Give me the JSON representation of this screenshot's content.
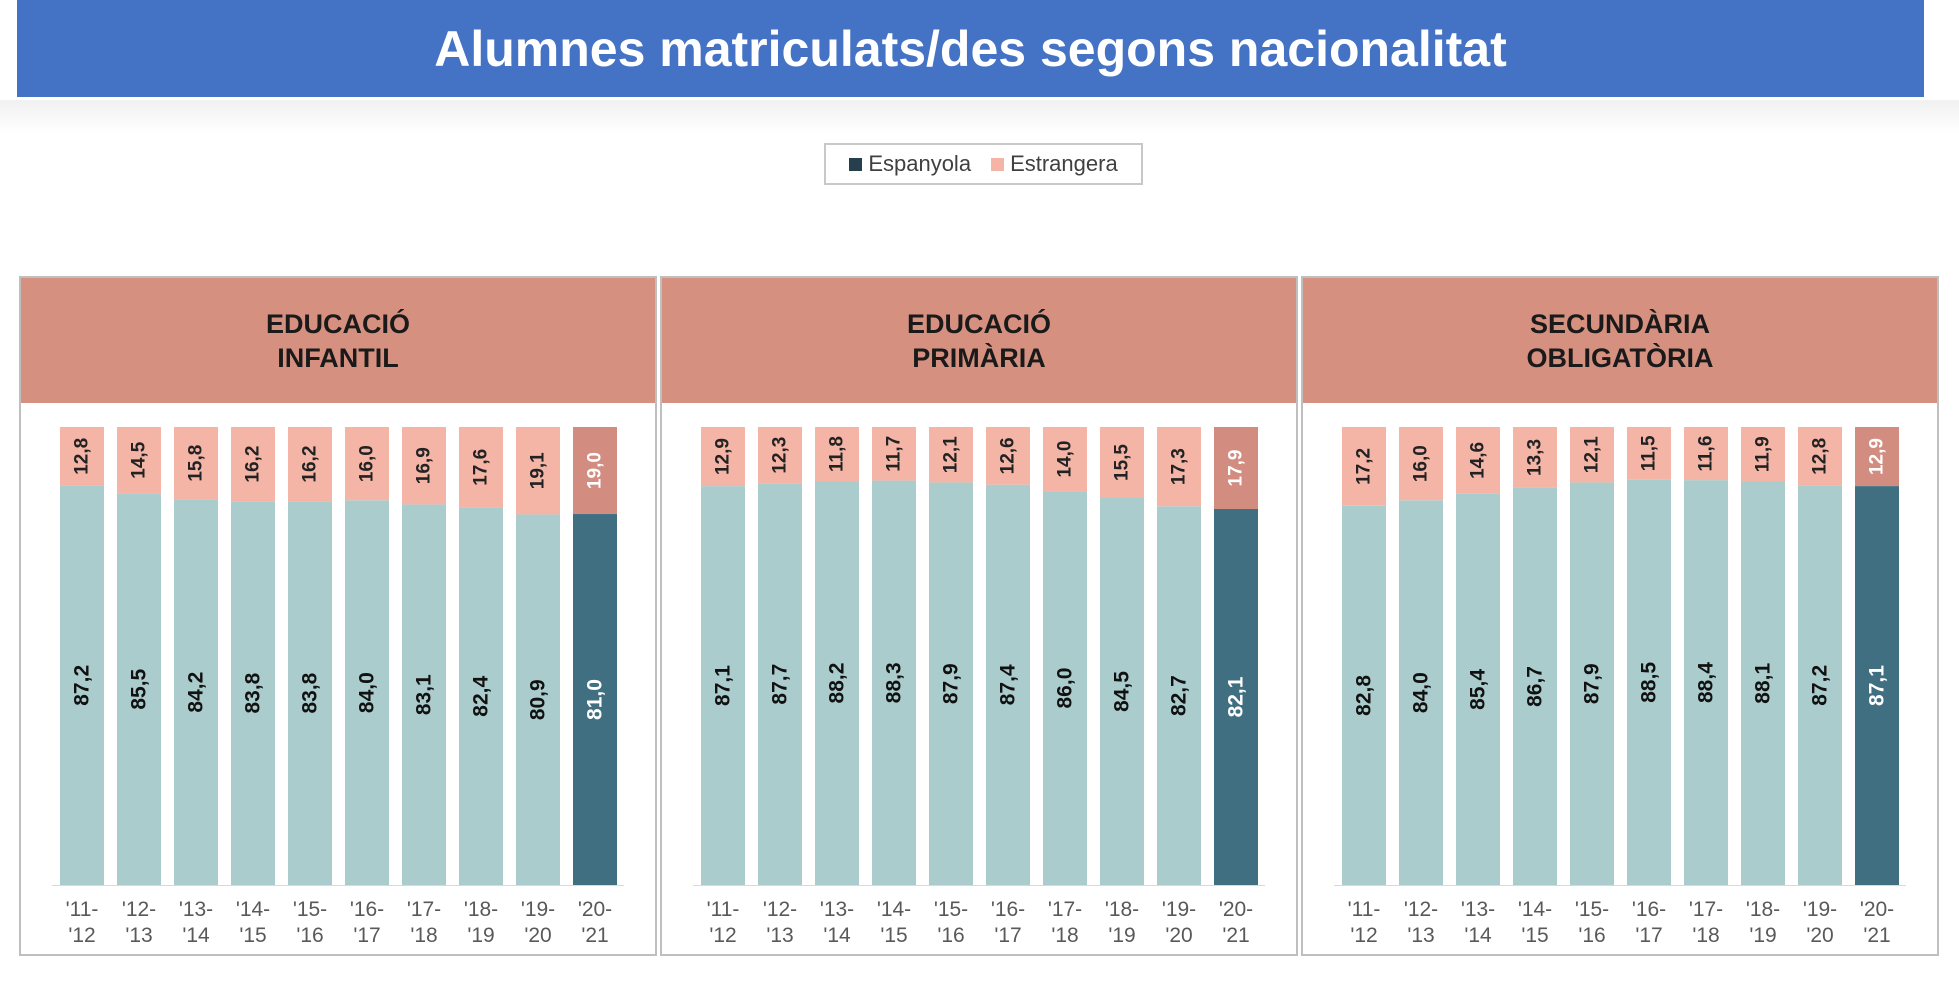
{
  "title": "Alumnes matriculats/des segons nacionalitat",
  "legend": {
    "items": [
      {
        "label": "Espanyola",
        "color": "#253f4d"
      },
      {
        "label": "Estrangera",
        "color": "#f4b5a7"
      }
    ]
  },
  "colors": {
    "espanyola_past": "#abcccd",
    "estrangera_past": "#f4b5a7",
    "espanyola_current": "#416f82",
    "estrangera_current": "#d28c80",
    "header": "#d59080"
  },
  "chart_data": [
    {
      "type": "bar",
      "stacked": true,
      "title": "EDUCACIÓ\nINFANTIL",
      "categories": [
        "'11-\n'12",
        "'12-\n'13",
        "'13-\n'14",
        "'14-\n'15",
        "'15-\n'16",
        "'16-\n'17",
        "'17-\n'18",
        "'18-\n'19",
        "'19-\n'20",
        "'20-\n'21"
      ],
      "series": [
        {
          "name": "Espanyola",
          "values": [
            87.2,
            85.5,
            84.2,
            83.8,
            83.8,
            84.0,
            83.1,
            82.4,
            80.9,
            81.0
          ],
          "labels": [
            "87,2",
            "85,5",
            "84,2",
            "83,8",
            "83,8",
            "84,0",
            "83,1",
            "82,4",
            "80,9",
            "81,0"
          ]
        },
        {
          "name": "Estrangera",
          "values": [
            12.8,
            14.5,
            15.8,
            16.2,
            16.2,
            16.0,
            16.9,
            17.6,
            19.1,
            19.0
          ],
          "labels": [
            "12,8",
            "14,5",
            "15,8",
            "16,2",
            "16,2",
            "16,0",
            "16,9",
            "17,6",
            "19,1",
            "19,0"
          ]
        }
      ],
      "ylim": [
        0,
        100
      ]
    },
    {
      "type": "bar",
      "stacked": true,
      "title": "EDUCACIÓ\nPRIMÀRIA",
      "categories": [
        "'11-\n'12",
        "'12-\n'13",
        "'13-\n'14",
        "'14-\n'15",
        "'15-\n'16",
        "'16-\n'17",
        "'17-\n'18",
        "'18-\n'19",
        "'19-\n'20",
        "'20-\n'21"
      ],
      "series": [
        {
          "name": "Espanyola",
          "values": [
            87.1,
            87.7,
            88.2,
            88.3,
            87.9,
            87.4,
            86.0,
            84.5,
            82.7,
            82.1
          ],
          "labels": [
            "87,1",
            "87,7",
            "88,2",
            "88,3",
            "87,9",
            "87,4",
            "86,0",
            "84,5",
            "82,7",
            "82,1"
          ]
        },
        {
          "name": "Estrangera",
          "values": [
            12.9,
            12.3,
            11.8,
            11.7,
            12.1,
            12.6,
            14.0,
            15.5,
            17.3,
            17.9
          ],
          "labels": [
            "12,9",
            "12,3",
            "11,8",
            "11,7",
            "12,1",
            "12,6",
            "14,0",
            "15,5",
            "17,3",
            "17,9"
          ]
        }
      ],
      "ylim": [
        0,
        100
      ]
    },
    {
      "type": "bar",
      "stacked": true,
      "title": "SECUNDÀRIA\nOBLIGATÒRIA",
      "categories": [
        "'11-\n'12",
        "'12-\n'13",
        "'13-\n'14",
        "'14-\n'15",
        "'15-\n'16",
        "'16-\n'17",
        "'17-\n'18",
        "'18-\n'19",
        "'19-\n'20",
        "'20-\n'21"
      ],
      "series": [
        {
          "name": "Espanyola",
          "values": [
            82.8,
            84.0,
            85.4,
            86.7,
            87.9,
            88.5,
            88.4,
            88.1,
            87.2,
            87.1
          ],
          "labels": [
            "82,8",
            "84,0",
            "85,4",
            "86,7",
            "87,9",
            "88,5",
            "88,4",
            "88,1",
            "87,2",
            "87,1"
          ]
        },
        {
          "name": "Estrangera",
          "values": [
            17.2,
            16.0,
            14.6,
            13.3,
            12.1,
            11.5,
            11.6,
            11.9,
            12.8,
            12.9
          ],
          "labels": [
            "17,2",
            "16,0",
            "14,6",
            "13,3",
            "12,1",
            "11,5",
            "11,6",
            "11,9",
            "12,8",
            "12,9"
          ]
        }
      ],
      "ylim": [
        0,
        100
      ]
    }
  ]
}
